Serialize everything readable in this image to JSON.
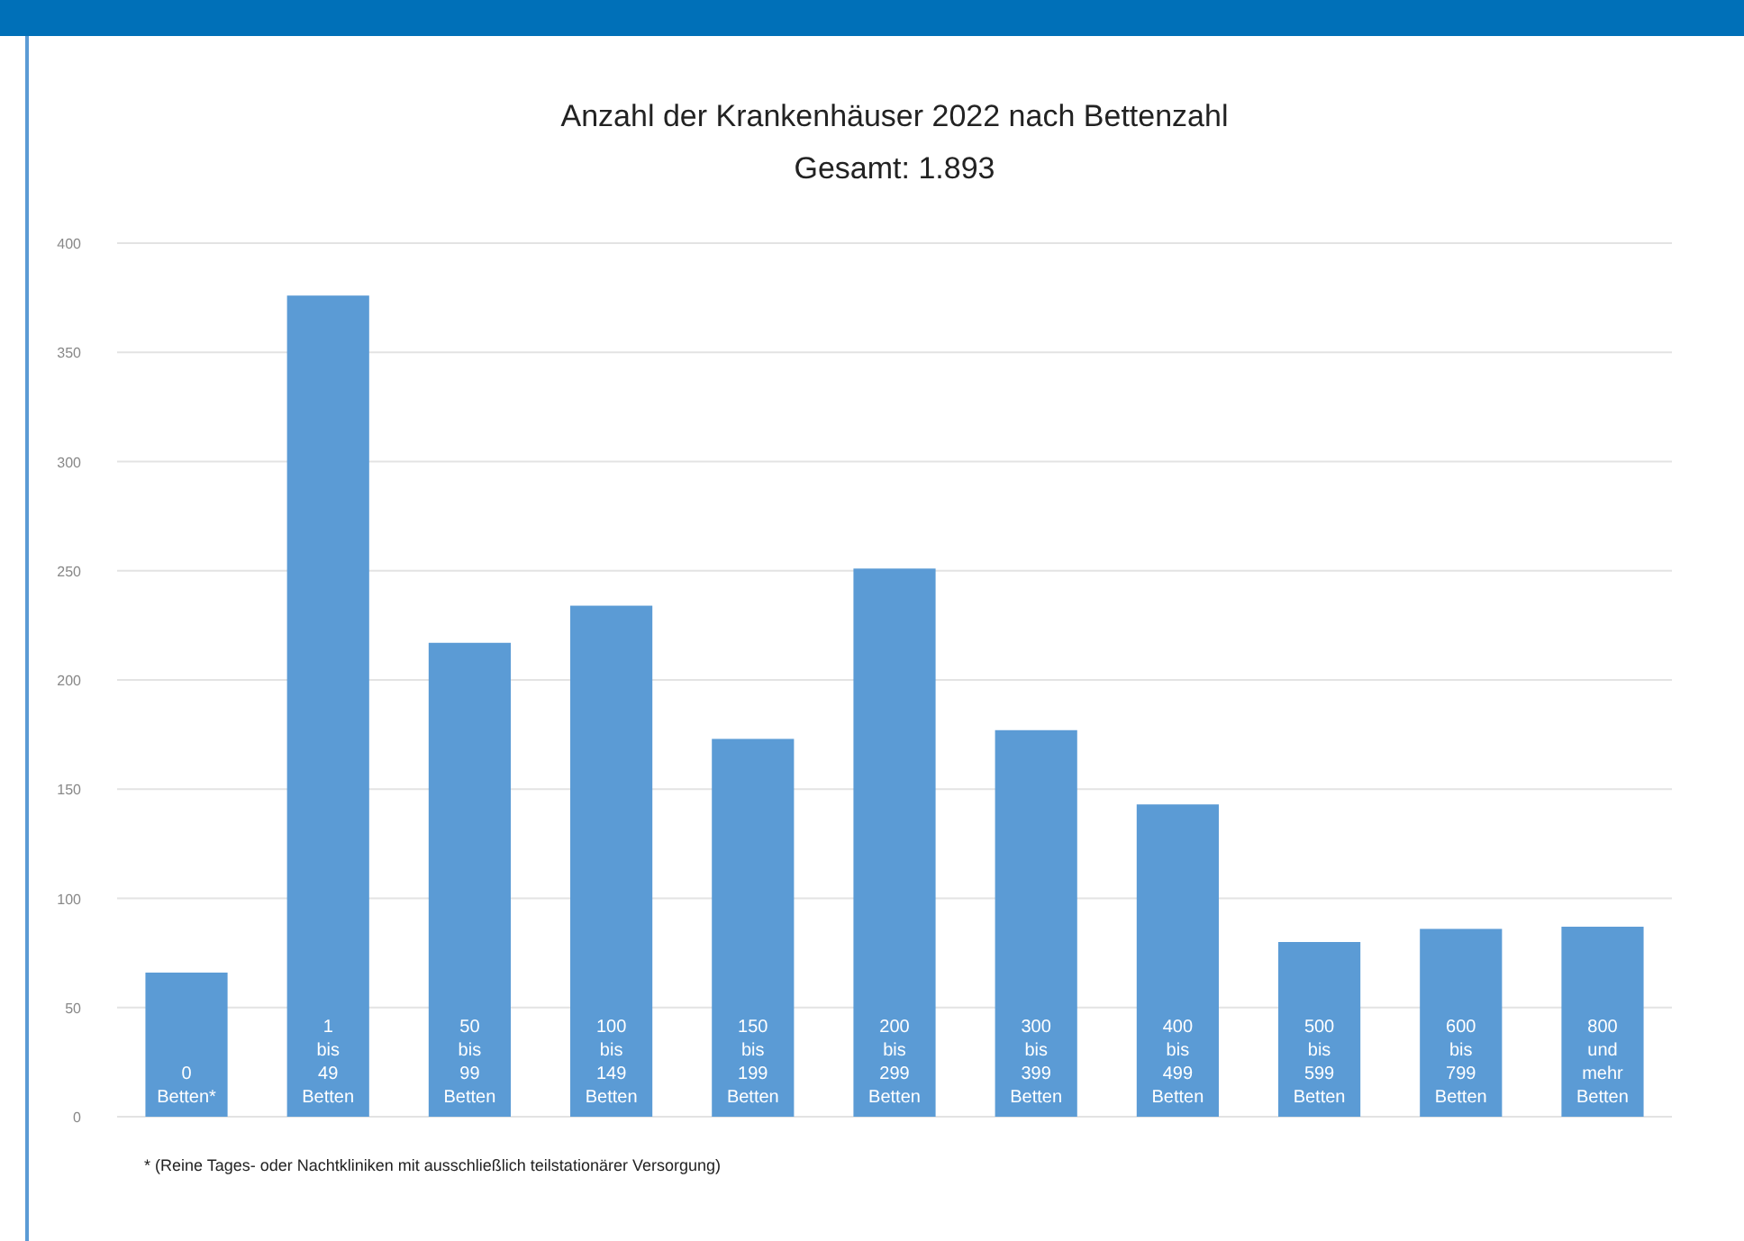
{
  "chart_data": {
    "type": "bar",
    "title": "Anzahl der Krankenhäuser 2022 nach Bettenzahl",
    "subtitle": "Gesamt: 1.893",
    "categories": [
      "0 Betten*",
      "1 bis 49 Betten",
      "50 bis 99 Betten",
      "100 bis 149 Betten",
      "150 bis 199 Betten",
      "200 bis 299 Betten",
      "300 bis 399 Betten",
      "400 bis 499 Betten",
      "500 bis 599 Betten",
      "600 bis 799 Betten",
      "800 und mehr Betten"
    ],
    "values": [
      66,
      376,
      217,
      234,
      173,
      251,
      177,
      143,
      80,
      86,
      87
    ],
    "color": "#5b9bd5",
    "ylim": [
      0,
      400
    ],
    "yticks": [
      0,
      50,
      100,
      150,
      200,
      250,
      300,
      350,
      400
    ],
    "grid": "y",
    "annotations": [
      "* (Reine Tages- oder Nachtkliniken mit ausschließlich teilstationärer Versorgung)"
    ]
  }
}
